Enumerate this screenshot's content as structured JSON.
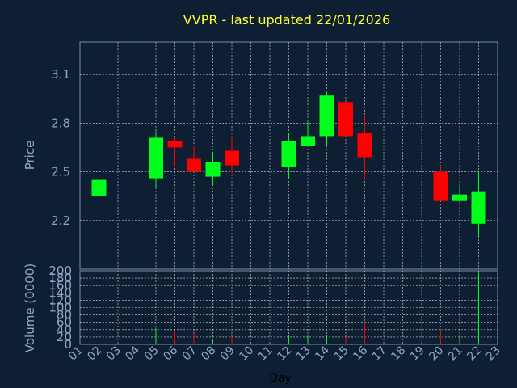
{
  "chart_data": {
    "type": "candlestick",
    "title": "VVPR - last updated 22/01/2026",
    "xlabel": "Day",
    "ylabel": "Price",
    "volume_label": "Volume (0000)",
    "x_ticks": [
      "01",
      "02",
      "03",
      "04",
      "05",
      "06",
      "07",
      "08",
      "09",
      "10",
      "11",
      "12",
      "13",
      "14",
      "15",
      "16",
      "17",
      "18",
      "19",
      "20",
      "21",
      "22",
      "23"
    ],
    "y_ticks": [
      "2.2",
      "2.5",
      "2.8",
      "3.1"
    ],
    "y_range": [
      1.9,
      3.3
    ],
    "volume_ticks": [
      "0",
      "20",
      "40",
      "60",
      "80",
      "100",
      "120",
      "140",
      "160",
      "180",
      "200"
    ],
    "volume_range": [
      0,
      200
    ],
    "grid": true,
    "colors": {
      "background": "#0f1f33",
      "plot_border": "#7a8ca8",
      "grid": "#d8d8d8",
      "up": "#00ff1a",
      "down": "#ff0000",
      "title": "#ffff33",
      "tick": "#8fa6c4"
    },
    "candles": [
      {
        "day": 2,
        "open": 2.35,
        "high": 2.48,
        "low": 2.31,
        "close": 2.45,
        "volume": 40
      },
      {
        "day": 5,
        "open": 2.46,
        "high": 2.75,
        "low": 2.4,
        "close": 2.71,
        "volume": 45
      },
      {
        "day": 6,
        "open": 2.69,
        "high": 2.71,
        "low": 2.53,
        "close": 2.65,
        "volume": 35
      },
      {
        "day": 7,
        "open": 2.58,
        "high": 2.66,
        "low": 2.5,
        "close": 2.5,
        "volume": 30
      },
      {
        "day": 8,
        "open": 2.47,
        "high": 2.62,
        "low": 2.42,
        "close": 2.56,
        "volume": 15
      },
      {
        "day": 9,
        "open": 2.63,
        "high": 2.72,
        "low": 2.49,
        "close": 2.54,
        "volume": 20
      },
      {
        "day": 12,
        "open": 2.53,
        "high": 2.74,
        "low": 2.46,
        "close": 2.69,
        "volume": 25
      },
      {
        "day": 13,
        "open": 2.66,
        "high": 2.81,
        "low": 2.66,
        "close": 2.72,
        "volume": 20
      },
      {
        "day": 14,
        "open": 2.72,
        "high": 2.99,
        "low": 2.66,
        "close": 2.97,
        "volume": 20
      },
      {
        "day": 15,
        "open": 2.93,
        "high": 2.93,
        "low": 2.72,
        "close": 2.72,
        "volume": 20
      },
      {
        "day": 16,
        "open": 2.74,
        "high": 2.84,
        "low": 2.45,
        "close": 2.59,
        "volume": 60
      },
      {
        "day": 20,
        "open": 2.5,
        "high": 2.54,
        "low": 2.32,
        "close": 2.32,
        "volume": 40
      },
      {
        "day": 21,
        "open": 2.32,
        "high": 2.41,
        "low": 2.31,
        "close": 2.36,
        "volume": 20
      },
      {
        "day": 22,
        "open": 2.18,
        "high": 2.5,
        "low": 2.1,
        "close": 2.38,
        "volume": 195
      }
    ]
  }
}
